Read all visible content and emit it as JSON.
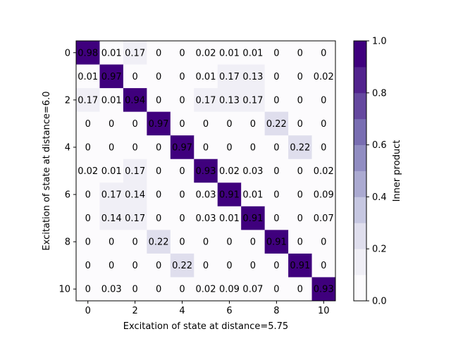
{
  "chart_data": {
    "type": "heatmap",
    "title": "",
    "xlabel": "Excitation of state at distance=5.75",
    "ylabel": "Excitation of state at distance=6.0",
    "x_ticks": [
      "0",
      "2",
      "4",
      "6",
      "8",
      "10"
    ],
    "y_ticks": [
      "0",
      "2",
      "4",
      "6",
      "8",
      "10"
    ],
    "x_tick_values": [
      0,
      2,
      4,
      6,
      8,
      10
    ],
    "y_tick_values": [
      0,
      2,
      4,
      6,
      8,
      10
    ],
    "xlim": [
      -0.5,
      10.5
    ],
    "ylim": [
      10.5,
      -0.5
    ],
    "grid": false,
    "colormap": "Purples",
    "colormap_colors": [
      "#fcfbfd",
      "#efedf5",
      "#dadaeb",
      "#bcbddc",
      "#9e9ac8",
      "#807dba",
      "#6a51a3",
      "#54278f",
      "#3f007d"
    ],
    "color_levels": 10,
    "vmin": 0.0,
    "vmax": 1.0,
    "colorbar": {
      "label": "Inner product",
      "ticks": [
        "0.0",
        "0.2",
        "0.4",
        "0.6",
        "0.8",
        "1.0"
      ],
      "tick_values": [
        0.0,
        0.2,
        0.4,
        0.6,
        0.8,
        1.0
      ]
    },
    "values": [
      [
        0.98,
        0.01,
        0.17,
        0.0,
        0.0,
        0.02,
        0.01,
        0.01,
        0.0,
        0.0,
        0.0
      ],
      [
        0.01,
        0.97,
        0.0,
        0.0,
        0.0,
        0.01,
        0.17,
        0.13,
        0.0,
        0.0,
        0.02
      ],
      [
        0.17,
        0.01,
        0.94,
        0.0,
        0.0,
        0.17,
        0.13,
        0.17,
        0.0,
        0.0,
        0.0
      ],
      [
        0.0,
        0.0,
        0.0,
        0.97,
        0.0,
        0.0,
        0.0,
        0.0,
        0.22,
        0.0,
        0.0
      ],
      [
        0.0,
        0.0,
        0.0,
        0.0,
        0.97,
        0.0,
        0.0,
        0.0,
        0.0,
        0.22,
        0.0
      ],
      [
        0.02,
        0.01,
        0.17,
        0.0,
        0.0,
        0.93,
        0.02,
        0.03,
        0.0,
        0.0,
        0.02
      ],
      [
        0.0,
        0.17,
        0.14,
        0.0,
        0.0,
        0.03,
        0.91,
        0.01,
        0.0,
        0.0,
        0.09
      ],
      [
        0.0,
        0.14,
        0.17,
        0.0,
        0.0,
        0.03,
        0.01,
        0.91,
        0.0,
        0.0,
        0.07
      ],
      [
        0.0,
        0.0,
        0.0,
        0.22,
        0.0,
        0.0,
        0.0,
        0.0,
        0.91,
        0.0,
        0.0
      ],
      [
        0.0,
        0.0,
        0.0,
        0.0,
        0.22,
        0.0,
        0.0,
        0.0,
        0.0,
        0.91,
        0.0
      ],
      [
        0.0,
        0.03,
        0.0,
        0.0,
        0.0,
        0.02,
        0.09,
        0.07,
        0.0,
        0.0,
        0.93
      ]
    ]
  }
}
